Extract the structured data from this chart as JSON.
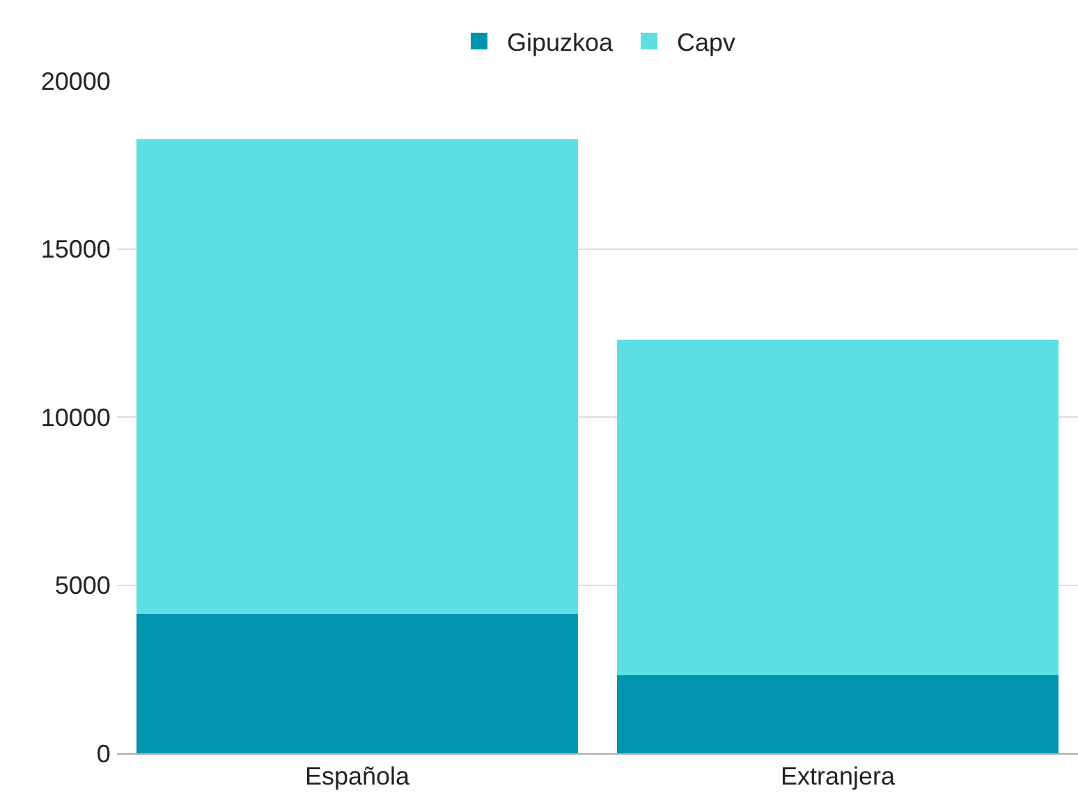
{
  "chart_data": {
    "type": "bar",
    "stacked": true,
    "categories": [
      "Española",
      "Extranjera"
    ],
    "series": [
      {
        "name": "Gipuzkoa",
        "color": "#0094ad",
        "values": [
          4140,
          2320
        ]
      },
      {
        "name": "Capv",
        "color": "#5ce0e4",
        "values": [
          14120,
          9980
        ]
      }
    ],
    "ylim": [
      0,
      20000
    ],
    "yticks": [
      0,
      5000,
      10000,
      15000,
      20000
    ],
    "grid": "y",
    "legend": "top"
  }
}
